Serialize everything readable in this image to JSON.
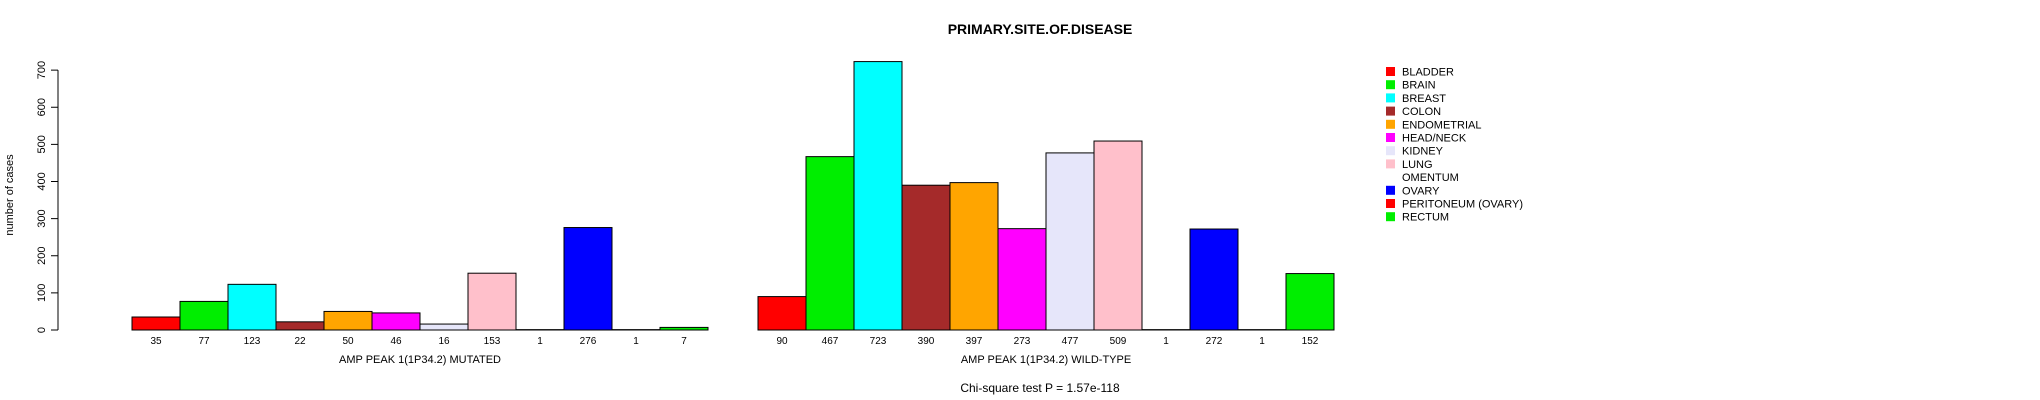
{
  "chart_data": {
    "type": "bar",
    "title": "PRIMARY.SITE.OF.DISEASE",
    "ylabel": "number of cases",
    "ylim": [
      0,
      720
    ],
    "yticks": [
      0,
      100,
      200,
      300,
      400,
      500,
      600,
      700
    ],
    "categories": [
      "BLADDER",
      "BRAIN",
      "BREAST",
      "COLON",
      "ENDOMETRIAL",
      "HEAD/NECK",
      "KIDNEY",
      "LUNG",
      "OMENTUM",
      "OVARY",
      "PERITONEUM (OVARY)",
      "RECTUM"
    ],
    "colors": [
      "#ff0000",
      "#00ee00",
      "#00ffff",
      "#a52a2a",
      "#ffa500",
      "#ff00ff",
      "#e6e6fa",
      "#ffc0cb",
      "#ffffff",
      "#0000ff",
      "#ff0000",
      "#00ee00"
    ],
    "groups": [
      {
        "name": "AMP PEAK  1(1P34.2) MUTATED",
        "values": [
          35,
          77,
          123,
          22,
          50,
          46,
          16,
          153,
          1,
          276,
          1,
          7
        ]
      },
      {
        "name": "AMP PEAK  1(1P34.2) WILD-TYPE",
        "values": [
          90,
          467,
          723,
          390,
          397,
          273,
          477,
          509,
          1,
          272,
          1,
          152
        ]
      }
    ],
    "legend": {
      "position": "top-right",
      "entries": [
        "BLADDER",
        "BRAIN",
        "BREAST",
        "COLON",
        "ENDOMETRIAL",
        "HEAD/NECK",
        "KIDNEY",
        "LUNG",
        "OMENTUM",
        "OVARY",
        "PERITONEUM (OVARY)",
        "RECTUM"
      ]
    },
    "grid": false,
    "footer": "Chi-square test P = 1.57e-118"
  }
}
